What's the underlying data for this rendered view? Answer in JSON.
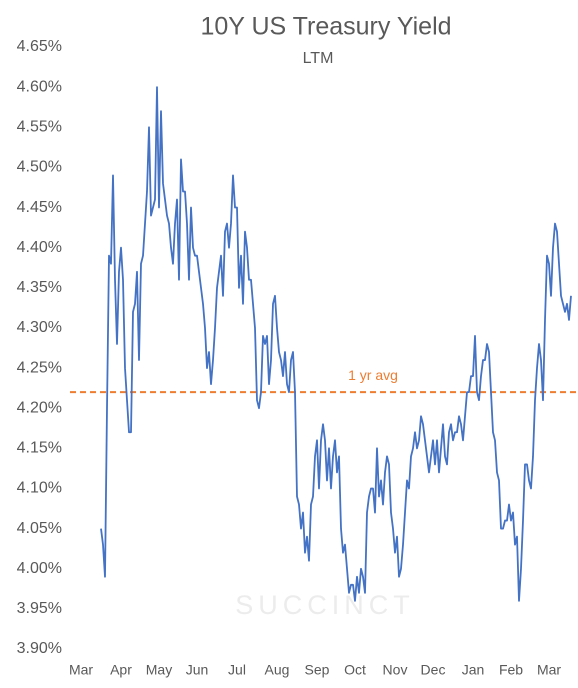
{
  "chart_data": {
    "type": "line",
    "title": "10Y US Treasury Yield",
    "subtitle": "LTM",
    "categories": [
      "Mar",
      null,
      null,
      null,
      null,
      null,
      null,
      null,
      null,
      null,
      null,
      null,
      null,
      null,
      null,
      null,
      null,
      null,
      null,
      null,
      "Apr",
      null,
      null,
      null,
      null,
      null,
      null,
      null,
      null,
      null,
      null,
      null,
      null,
      null,
      null,
      null,
      null,
      null,
      null,
      "May",
      null,
      null,
      null,
      null,
      null,
      null,
      null,
      null,
      null,
      null,
      null,
      null,
      null,
      null,
      null,
      null,
      null,
      null,
      "Jun",
      null,
      null,
      null,
      null,
      null,
      null,
      null,
      null,
      null,
      null,
      null,
      null,
      null,
      null,
      null,
      null,
      null,
      null,
      null,
      "Jul",
      null,
      null,
      null,
      null,
      null,
      null,
      null,
      null,
      null,
      null,
      null,
      null,
      null,
      null,
      null,
      null,
      null,
      null,
      null,
      "Aug",
      null,
      null,
      null,
      null,
      null,
      null,
      null,
      null,
      null,
      null,
      null,
      null,
      null,
      null,
      null,
      null,
      null,
      null,
      null,
      "Sep",
      null,
      null,
      null,
      null,
      null,
      null,
      null,
      null,
      null,
      null,
      null,
      null,
      null,
      null,
      null,
      null,
      null,
      null,
      "Oct",
      null,
      null,
      null,
      null,
      null,
      null,
      null,
      null,
      null,
      null,
      null,
      null,
      null,
      null,
      null,
      null,
      null,
      null,
      null,
      "Nov",
      null,
      null,
      null,
      null,
      null,
      null,
      null,
      null,
      null,
      null,
      null,
      null,
      null,
      null,
      null,
      null,
      null,
      null,
      "Dec",
      null,
      null,
      null,
      null,
      null,
      null,
      null,
      null,
      null,
      null,
      null,
      null,
      null,
      null,
      null,
      null,
      null,
      null,
      null,
      "Jan",
      null,
      null,
      null,
      null,
      null,
      null,
      null,
      null,
      null,
      null,
      null,
      null,
      null,
      null,
      null,
      null,
      null,
      null,
      "Feb",
      null,
      null,
      null,
      null,
      null,
      null,
      null,
      null,
      null,
      null,
      null,
      null,
      null,
      null,
      null,
      null,
      null,
      null,
      "Mar",
      null,
      null,
      null,
      null,
      null,
      null,
      null,
      null,
      null,
      null,
      null
    ],
    "series": [
      {
        "name": "10Y US Treasury Yield",
        "color": "#4472c4",
        "values": [
          null,
          null,
          null,
          null,
          null,
          null,
          null,
          null,
          null,
          null,
          4.05,
          4.03,
          3.99,
          4.2,
          4.39,
          4.38,
          4.49,
          4.36,
          4.28,
          4.37,
          4.4,
          4.36,
          4.25,
          4.21,
          4.17,
          4.17,
          4.32,
          4.33,
          4.37,
          4.26,
          4.38,
          4.39,
          4.43,
          4.47,
          4.55,
          4.44,
          4.45,
          4.46,
          4.6,
          4.45,
          4.57,
          4.48,
          4.46,
          4.44,
          4.43,
          4.4,
          4.38,
          4.43,
          4.46,
          4.36,
          4.51,
          4.47,
          4.47,
          4.43,
          4.36,
          4.45,
          4.4,
          4.39,
          4.39,
          4.37,
          4.35,
          4.33,
          4.3,
          4.25,
          4.27,
          4.23,
          4.26,
          4.3,
          4.35,
          4.37,
          4.39,
          4.34,
          4.42,
          4.43,
          4.4,
          4.43,
          4.49,
          4.45,
          4.45,
          4.35,
          4.39,
          4.33,
          4.42,
          4.4,
          4.36,
          4.36,
          4.33,
          4.3,
          4.21,
          4.2,
          4.22,
          4.29,
          4.28,
          4.29,
          4.23,
          4.26,
          4.33,
          4.34,
          4.3,
          4.27,
          4.26,
          4.24,
          4.27,
          4.23,
          4.22,
          4.26,
          4.27,
          4.22,
          4.09,
          4.08,
          4.05,
          4.07,
          4.02,
          4.04,
          4.01,
          4.08,
          4.09,
          4.14,
          4.16,
          4.1,
          4.16,
          4.18,
          4.16,
          4.11,
          4.15,
          4.1,
          4.14,
          4.16,
          4.12,
          4.14,
          4.05,
          4.02,
          4.03,
          4.0,
          3.97,
          3.98,
          3.98,
          3.96,
          3.99,
          3.97,
          4.0,
          3.99,
          3.97,
          4.07,
          4.09,
          4.1,
          4.1,
          4.07,
          4.15,
          4.09,
          4.11,
          4.08,
          4.12,
          4.14,
          4.13,
          4.07,
          4.05,
          4.02,
          4.04,
          3.99,
          4.0,
          4.03,
          4.07,
          4.11,
          4.1,
          4.14,
          4.15,
          4.17,
          4.15,
          4.16,
          4.19,
          4.18,
          4.16,
          4.14,
          4.12,
          4.14,
          4.16,
          4.13,
          4.16,
          4.12,
          4.15,
          4.18,
          4.14,
          4.13,
          4.17,
          4.18,
          4.16,
          4.17,
          4.17,
          4.19,
          4.18,
          4.16,
          4.19,
          4.22,
          4.22,
          4.24,
          4.24,
          4.29,
          4.22,
          4.21,
          4.24,
          4.26,
          4.26,
          4.28,
          4.27,
          4.22,
          4.17,
          4.16,
          4.12,
          4.11,
          4.05,
          4.05,
          4.06,
          4.06,
          4.08,
          4.06,
          4.07,
          4.03,
          4.04,
          3.96,
          4.0,
          4.06,
          4.13,
          4.13,
          4.11,
          4.1,
          4.14,
          4.21,
          4.25,
          4.28,
          4.26,
          4.21,
          4.31,
          4.39,
          4.38,
          4.34,
          4.4,
          4.43,
          4.42,
          4.38,
          4.34,
          4.33,
          4.32,
          4.33,
          4.31,
          4.34
        ]
      }
    ],
    "average": {
      "label": "1 yr avg",
      "value": 4.22,
      "color": "#ed7d31"
    },
    "watermark": "SUCCINCT",
    "ylim": [
      3.9,
      4.65
    ],
    "yticks": [
      {
        "value": 3.9,
        "label": "3.90%"
      },
      {
        "value": 3.95,
        "label": "3.95%"
      },
      {
        "value": 4.0,
        "label": "4.00%"
      },
      {
        "value": 4.05,
        "label": "4.05%"
      },
      {
        "value": 4.1,
        "label": "4.10%"
      },
      {
        "value": 4.15,
        "label": "4.15%"
      },
      {
        "value": 4.2,
        "label": "4.20%"
      },
      {
        "value": 4.25,
        "label": "4.25%"
      },
      {
        "value": 4.3,
        "label": "4.30%"
      },
      {
        "value": 4.35,
        "label": "4.35%"
      },
      {
        "value": 4.4,
        "label": "4.40%"
      },
      {
        "value": 4.45,
        "label": "4.45%"
      },
      {
        "value": 4.5,
        "label": "4.50%"
      },
      {
        "value": 4.55,
        "label": "4.55%"
      },
      {
        "value": 4.6,
        "label": "4.60%"
      },
      {
        "value": 4.65,
        "label": "4.65%"
      }
    ],
    "grid": false
  }
}
